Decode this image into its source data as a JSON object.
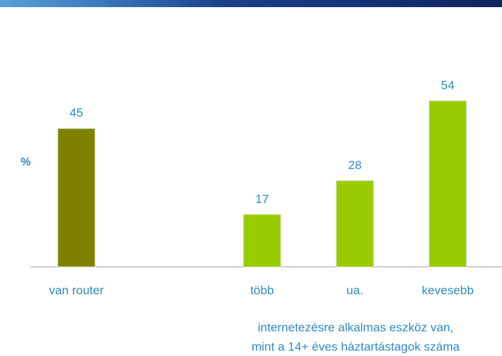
{
  "chart_data": {
    "type": "bar",
    "y_label": "%",
    "categories": [
      "van router",
      null,
      "több",
      "ua.",
      "kevesebb"
    ],
    "values": [
      45,
      null,
      17,
      28,
      54
    ],
    "colors": [
      "#808000",
      null,
      "#99cc00",
      "#99cc00",
      "#99cc00"
    ],
    "ylim": [
      0,
      75
    ],
    "annotation": [
      "internetezésre alkalmas eszköz van,",
      "mint a 14+ éves háztartástagok száma"
    ]
  }
}
